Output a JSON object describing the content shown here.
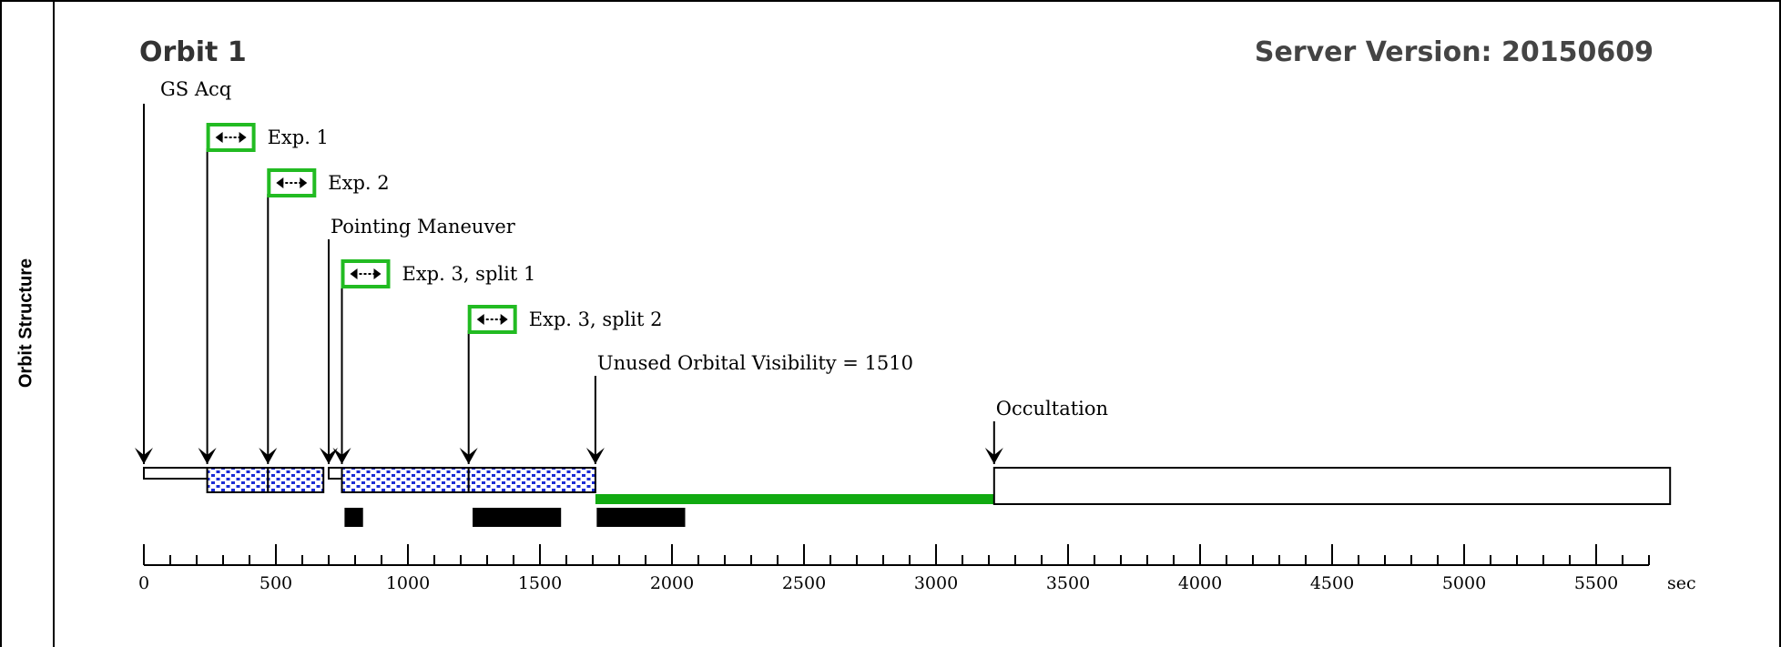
{
  "side_label": "Orbit Structure",
  "orbit_title": "Orbit 1",
  "server_version": "Server Version: 20150609",
  "axis": {
    "unit": "sec",
    "min": 0,
    "max": 5700,
    "major_ticks": [
      0,
      500,
      1000,
      1500,
      2000,
      2500,
      3000,
      3500,
      4000,
      4500,
      5000,
      5500
    ],
    "minor_step": 100
  },
  "events": [
    {
      "name": "gs-acq",
      "label": "GS Acq",
      "time": 0,
      "icon": false
    },
    {
      "name": "exp-1",
      "label": "Exp. 1",
      "time": 240,
      "icon": true
    },
    {
      "name": "exp-2",
      "label": "Exp. 2",
      "time": 470,
      "icon": true
    },
    {
      "name": "pointing-maneuver",
      "label": "Pointing Maneuver",
      "time": 700,
      "icon": false
    },
    {
      "name": "exp-3-split-1",
      "label": "Exp. 3, split 1",
      "time": 750,
      "icon": true
    },
    {
      "name": "exp-3-split-2",
      "label": "Exp. 3, split 2",
      "time": 1230,
      "icon": true
    },
    {
      "name": "unused-orbital-visibility",
      "label": "Unused Orbital Visibility = 1510",
      "time": 1710,
      "icon": false
    },
    {
      "name": "occultation",
      "label": "Occultation",
      "time": 3220,
      "icon": false
    }
  ],
  "segments": [
    {
      "name": "gs-acq-block",
      "start": 0,
      "end": 240,
      "style": "plain-thin"
    },
    {
      "name": "exp-1-block",
      "start": 240,
      "end": 470,
      "style": "dotted"
    },
    {
      "name": "exp-2-block",
      "start": 470,
      "end": 680,
      "style": "dotted"
    },
    {
      "name": "maneuver-block",
      "start": 700,
      "end": 750,
      "style": "plain-thin"
    },
    {
      "name": "exp-3-split-1-block",
      "start": 750,
      "end": 1230,
      "style": "dotted"
    },
    {
      "name": "exp-3-split-2-block",
      "start": 1230,
      "end": 1710,
      "style": "dotted"
    },
    {
      "name": "unused-visibility-bar",
      "start": 1710,
      "end": 3220,
      "style": "green"
    },
    {
      "name": "occultation-block",
      "start": 3220,
      "end": 5780,
      "style": "plain"
    }
  ],
  "readout_bars": [
    {
      "name": "readout-bar-1",
      "start": 760,
      "end": 830
    },
    {
      "name": "readout-bar-2",
      "start": 1245,
      "end": 1580
    },
    {
      "name": "readout-bar-3",
      "start": 1715,
      "end": 2050
    }
  ],
  "colors": {
    "icon_border": "#22bb22",
    "green_bar": "#11aa11",
    "dot_fill": "#1a2bd6",
    "black": "#000000"
  }
}
